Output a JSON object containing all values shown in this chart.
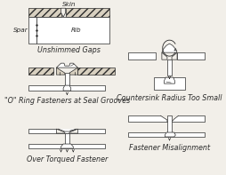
{
  "bg": "#f2efe9",
  "lc": "#2a2a2a",
  "fc_white": "#ffffff",
  "fc_hatch": "#d8d0c0",
  "fs": 5.2,
  "fs_label": 5.8,
  "labels": {
    "skin": "Skin",
    "spar": "Spar",
    "rib": "Rib",
    "unshimmed": "Unshimmed Gaps",
    "oring": "\"O\" Ring Fasteners at Seal Grooves",
    "overtorque": "Over Torqued Fastener",
    "countersink": "Countersink Radius Too Small",
    "misalignment": "Fastener Misalignment"
  }
}
